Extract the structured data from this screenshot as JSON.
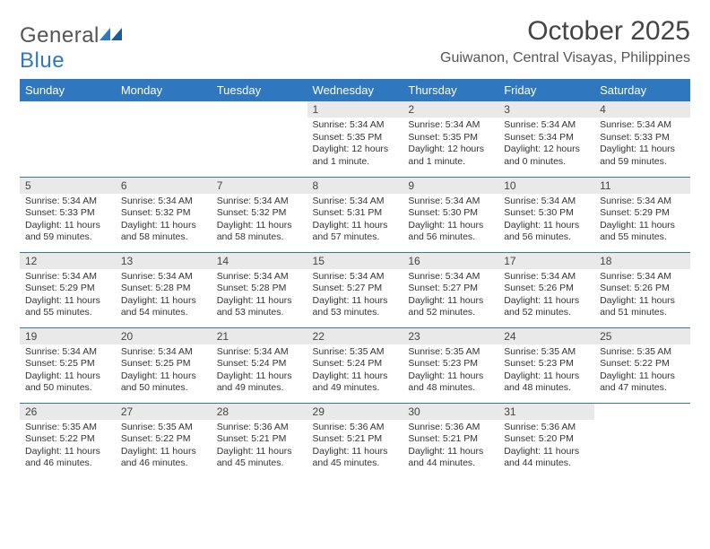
{
  "logo": {
    "word1": "General",
    "word2": "Blue"
  },
  "title": "October 2025",
  "location": "Guiwanon, Central Visayas, Philippines",
  "styling": {
    "header_bg": "#2f78bf",
    "header_text": "#ffffff",
    "daynum_bg": "#e9e9e9",
    "border_color": "#2f78bf",
    "title_fontsize": 30,
    "location_fontsize": 16,
    "th_fontsize": 13,
    "cell_fontsize": 10.5,
    "page_bg": "#ffffff",
    "text_color": "#333333"
  },
  "day_headers": [
    "Sunday",
    "Monday",
    "Tuesday",
    "Wednesday",
    "Thursday",
    "Friday",
    "Saturday"
  ],
  "weeks": [
    [
      {
        "empty": true
      },
      {
        "empty": true
      },
      {
        "empty": true
      },
      {
        "num": "1",
        "sunrise": "Sunrise: 5:34 AM",
        "sunset": "Sunset: 5:35 PM",
        "daylight": "Daylight: 12 hours and 1 minute."
      },
      {
        "num": "2",
        "sunrise": "Sunrise: 5:34 AM",
        "sunset": "Sunset: 5:35 PM",
        "daylight": "Daylight: 12 hours and 1 minute."
      },
      {
        "num": "3",
        "sunrise": "Sunrise: 5:34 AM",
        "sunset": "Sunset: 5:34 PM",
        "daylight": "Daylight: 12 hours and 0 minutes."
      },
      {
        "num": "4",
        "sunrise": "Sunrise: 5:34 AM",
        "sunset": "Sunset: 5:33 PM",
        "daylight": "Daylight: 11 hours and 59 minutes."
      }
    ],
    [
      {
        "num": "5",
        "sunrise": "Sunrise: 5:34 AM",
        "sunset": "Sunset: 5:33 PM",
        "daylight": "Daylight: 11 hours and 59 minutes."
      },
      {
        "num": "6",
        "sunrise": "Sunrise: 5:34 AM",
        "sunset": "Sunset: 5:32 PM",
        "daylight": "Daylight: 11 hours and 58 minutes."
      },
      {
        "num": "7",
        "sunrise": "Sunrise: 5:34 AM",
        "sunset": "Sunset: 5:32 PM",
        "daylight": "Daylight: 11 hours and 58 minutes."
      },
      {
        "num": "8",
        "sunrise": "Sunrise: 5:34 AM",
        "sunset": "Sunset: 5:31 PM",
        "daylight": "Daylight: 11 hours and 57 minutes."
      },
      {
        "num": "9",
        "sunrise": "Sunrise: 5:34 AM",
        "sunset": "Sunset: 5:30 PM",
        "daylight": "Daylight: 11 hours and 56 minutes."
      },
      {
        "num": "10",
        "sunrise": "Sunrise: 5:34 AM",
        "sunset": "Sunset: 5:30 PM",
        "daylight": "Daylight: 11 hours and 56 minutes."
      },
      {
        "num": "11",
        "sunrise": "Sunrise: 5:34 AM",
        "sunset": "Sunset: 5:29 PM",
        "daylight": "Daylight: 11 hours and 55 minutes."
      }
    ],
    [
      {
        "num": "12",
        "sunrise": "Sunrise: 5:34 AM",
        "sunset": "Sunset: 5:29 PM",
        "daylight": "Daylight: 11 hours and 55 minutes."
      },
      {
        "num": "13",
        "sunrise": "Sunrise: 5:34 AM",
        "sunset": "Sunset: 5:28 PM",
        "daylight": "Daylight: 11 hours and 54 minutes."
      },
      {
        "num": "14",
        "sunrise": "Sunrise: 5:34 AM",
        "sunset": "Sunset: 5:28 PM",
        "daylight": "Daylight: 11 hours and 53 minutes."
      },
      {
        "num": "15",
        "sunrise": "Sunrise: 5:34 AM",
        "sunset": "Sunset: 5:27 PM",
        "daylight": "Daylight: 11 hours and 53 minutes."
      },
      {
        "num": "16",
        "sunrise": "Sunrise: 5:34 AM",
        "sunset": "Sunset: 5:27 PM",
        "daylight": "Daylight: 11 hours and 52 minutes."
      },
      {
        "num": "17",
        "sunrise": "Sunrise: 5:34 AM",
        "sunset": "Sunset: 5:26 PM",
        "daylight": "Daylight: 11 hours and 52 minutes."
      },
      {
        "num": "18",
        "sunrise": "Sunrise: 5:34 AM",
        "sunset": "Sunset: 5:26 PM",
        "daylight": "Daylight: 11 hours and 51 minutes."
      }
    ],
    [
      {
        "num": "19",
        "sunrise": "Sunrise: 5:34 AM",
        "sunset": "Sunset: 5:25 PM",
        "daylight": "Daylight: 11 hours and 50 minutes."
      },
      {
        "num": "20",
        "sunrise": "Sunrise: 5:34 AM",
        "sunset": "Sunset: 5:25 PM",
        "daylight": "Daylight: 11 hours and 50 minutes."
      },
      {
        "num": "21",
        "sunrise": "Sunrise: 5:34 AM",
        "sunset": "Sunset: 5:24 PM",
        "daylight": "Daylight: 11 hours and 49 minutes."
      },
      {
        "num": "22",
        "sunrise": "Sunrise: 5:35 AM",
        "sunset": "Sunset: 5:24 PM",
        "daylight": "Daylight: 11 hours and 49 minutes."
      },
      {
        "num": "23",
        "sunrise": "Sunrise: 5:35 AM",
        "sunset": "Sunset: 5:23 PM",
        "daylight": "Daylight: 11 hours and 48 minutes."
      },
      {
        "num": "24",
        "sunrise": "Sunrise: 5:35 AM",
        "sunset": "Sunset: 5:23 PM",
        "daylight": "Daylight: 11 hours and 48 minutes."
      },
      {
        "num": "25",
        "sunrise": "Sunrise: 5:35 AM",
        "sunset": "Sunset: 5:22 PM",
        "daylight": "Daylight: 11 hours and 47 minutes."
      }
    ],
    [
      {
        "num": "26",
        "sunrise": "Sunrise: 5:35 AM",
        "sunset": "Sunset: 5:22 PM",
        "daylight": "Daylight: 11 hours and 46 minutes."
      },
      {
        "num": "27",
        "sunrise": "Sunrise: 5:35 AM",
        "sunset": "Sunset: 5:22 PM",
        "daylight": "Daylight: 11 hours and 46 minutes."
      },
      {
        "num": "28",
        "sunrise": "Sunrise: 5:36 AM",
        "sunset": "Sunset: 5:21 PM",
        "daylight": "Daylight: 11 hours and 45 minutes."
      },
      {
        "num": "29",
        "sunrise": "Sunrise: 5:36 AM",
        "sunset": "Sunset: 5:21 PM",
        "daylight": "Daylight: 11 hours and 45 minutes."
      },
      {
        "num": "30",
        "sunrise": "Sunrise: 5:36 AM",
        "sunset": "Sunset: 5:21 PM",
        "daylight": "Daylight: 11 hours and 44 minutes."
      },
      {
        "num": "31",
        "sunrise": "Sunrise: 5:36 AM",
        "sunset": "Sunset: 5:20 PM",
        "daylight": "Daylight: 11 hours and 44 minutes."
      },
      {
        "empty": true
      }
    ]
  ]
}
